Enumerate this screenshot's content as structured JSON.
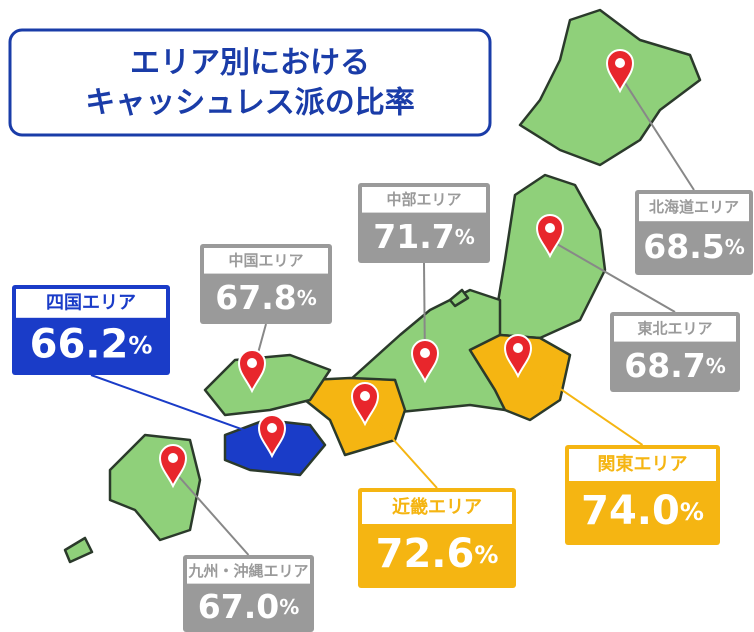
{
  "title": {
    "lines": [
      "エリア別における",
      "キャッシュレス派の比率"
    ]
  },
  "unit": "%",
  "regions": [
    {
      "name": "北海道エリア",
      "value": 68.5
    },
    {
      "name": "中部エリア",
      "value": 71.7
    },
    {
      "name": "中国エリア",
      "value": 67.8
    },
    {
      "name": "四国エリア",
      "value": 66.2
    },
    {
      "name": "東北エリア",
      "value": 68.7
    },
    {
      "name": "関東エリア",
      "value": 74.0
    },
    {
      "name": "近畿エリア",
      "value": 72.6
    },
    {
      "name": "九州・沖縄エリア",
      "value": 67.0
    }
  ]
}
